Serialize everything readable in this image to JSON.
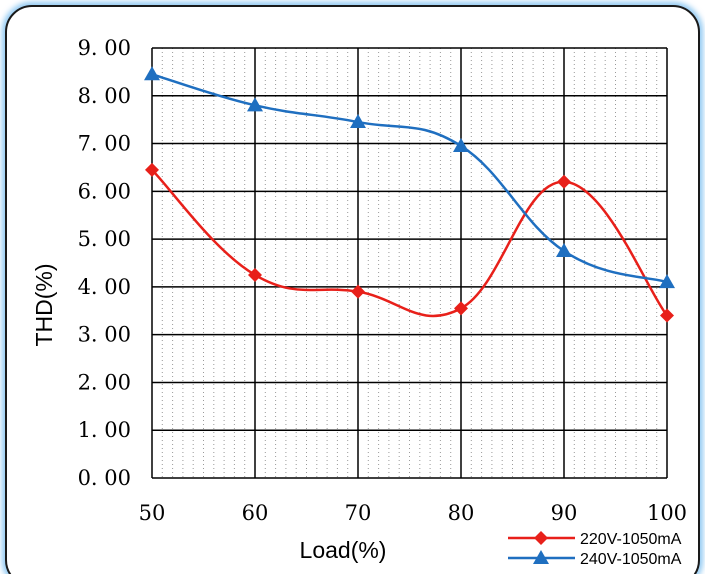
{
  "chart_data": {
    "type": "line",
    "title": "",
    "xlabel": "Load(%)",
    "ylabel": "THD(%)",
    "x": [
      50,
      60,
      70,
      80,
      90,
      100
    ],
    "x_tick_labels": [
      "50",
      "60",
      "70",
      "80",
      "90",
      "100"
    ],
    "xlim": [
      50,
      100
    ],
    "ylim": [
      0,
      9
    ],
    "y_tick_labels": [
      "0. 00",
      "1. 00",
      "2. 00",
      "3. 00",
      "4. 00",
      "5. 00",
      "6. 00",
      "7. 00",
      "8. 00",
      "9. 00"
    ],
    "y_ticks": [
      0,
      1,
      2,
      3,
      4,
      5,
      6,
      7,
      8,
      9
    ],
    "grid": true,
    "smooth": true,
    "legend_position": "bottom-right",
    "series": [
      {
        "name": "220V-1050mA",
        "color": "#e8201a",
        "marker": "diamond",
        "values": [
          6.45,
          4.25,
          3.9,
          3.55,
          6.2,
          3.4
        ]
      },
      {
        "name": "240V-1050mA",
        "color": "#1f6fc0",
        "marker": "triangle",
        "values": [
          8.45,
          7.8,
          7.45,
          6.95,
          4.75,
          4.1
        ]
      }
    ]
  }
}
